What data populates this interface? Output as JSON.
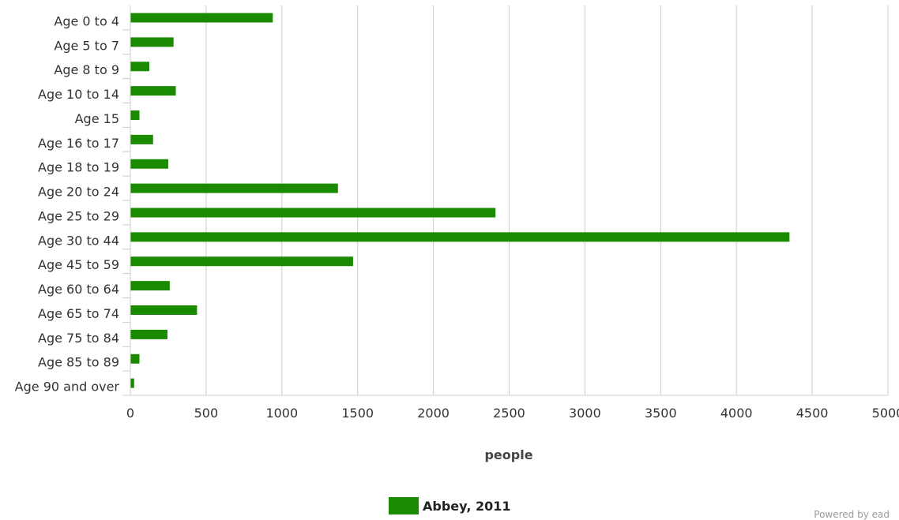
{
  "chart_data": {
    "type": "bar",
    "orientation": "horizontal",
    "categories": [
      "Age 0 to 4",
      "Age 5 to 7",
      "Age 8 to 9",
      "Age 10 to 14",
      "Age 15",
      "Age 16 to 17",
      "Age 18 to 19",
      "Age 20 to 24",
      "Age 25 to 29",
      "Age 30 to 44",
      "Age 45 to 59",
      "Age 60 to 64",
      "Age 65 to 74",
      "Age 75 to 84",
      "Age 85 to 89",
      "Age 90 and over"
    ],
    "series": [
      {
        "name": "Abbey, 2011",
        "color": "#1a8a00",
        "values": [
          940,
          285,
          125,
          300,
          60,
          150,
          250,
          1370,
          2410,
          4350,
          1470,
          260,
          440,
          245,
          60,
          25
        ]
      }
    ],
    "xlabel": "people",
    "ylabel": "",
    "xlim": [
      0,
      5000
    ],
    "xticks": [
      "0",
      "500",
      "1000",
      "1500",
      "2000",
      "2500",
      "3000",
      "3500",
      "4000",
      "4500",
      "5000"
    ],
    "grid": true,
    "legend": "bottom-center"
  },
  "credit": "Powered by ead"
}
